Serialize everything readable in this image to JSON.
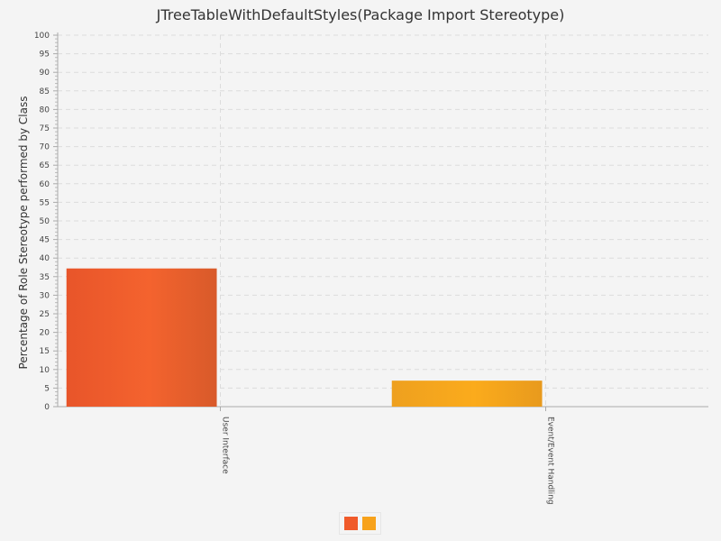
{
  "chart_data": {
    "type": "bar",
    "title": "JTreeTableWithDefaultStyles(Package Import Stereotype)",
    "xlabel": "",
    "ylabel": "Percentage of Role Stereotype performed by Class",
    "categories": [
      "User Interface",
      "Event/Event Handling"
    ],
    "values": [
      37.2,
      7.0
    ],
    "ylim": [
      0,
      100
    ],
    "ytick_step": 5,
    "grid": true,
    "legend": "bottom-center",
    "colors": [
      "#f05a2a",
      "#f7a21b"
    ]
  }
}
